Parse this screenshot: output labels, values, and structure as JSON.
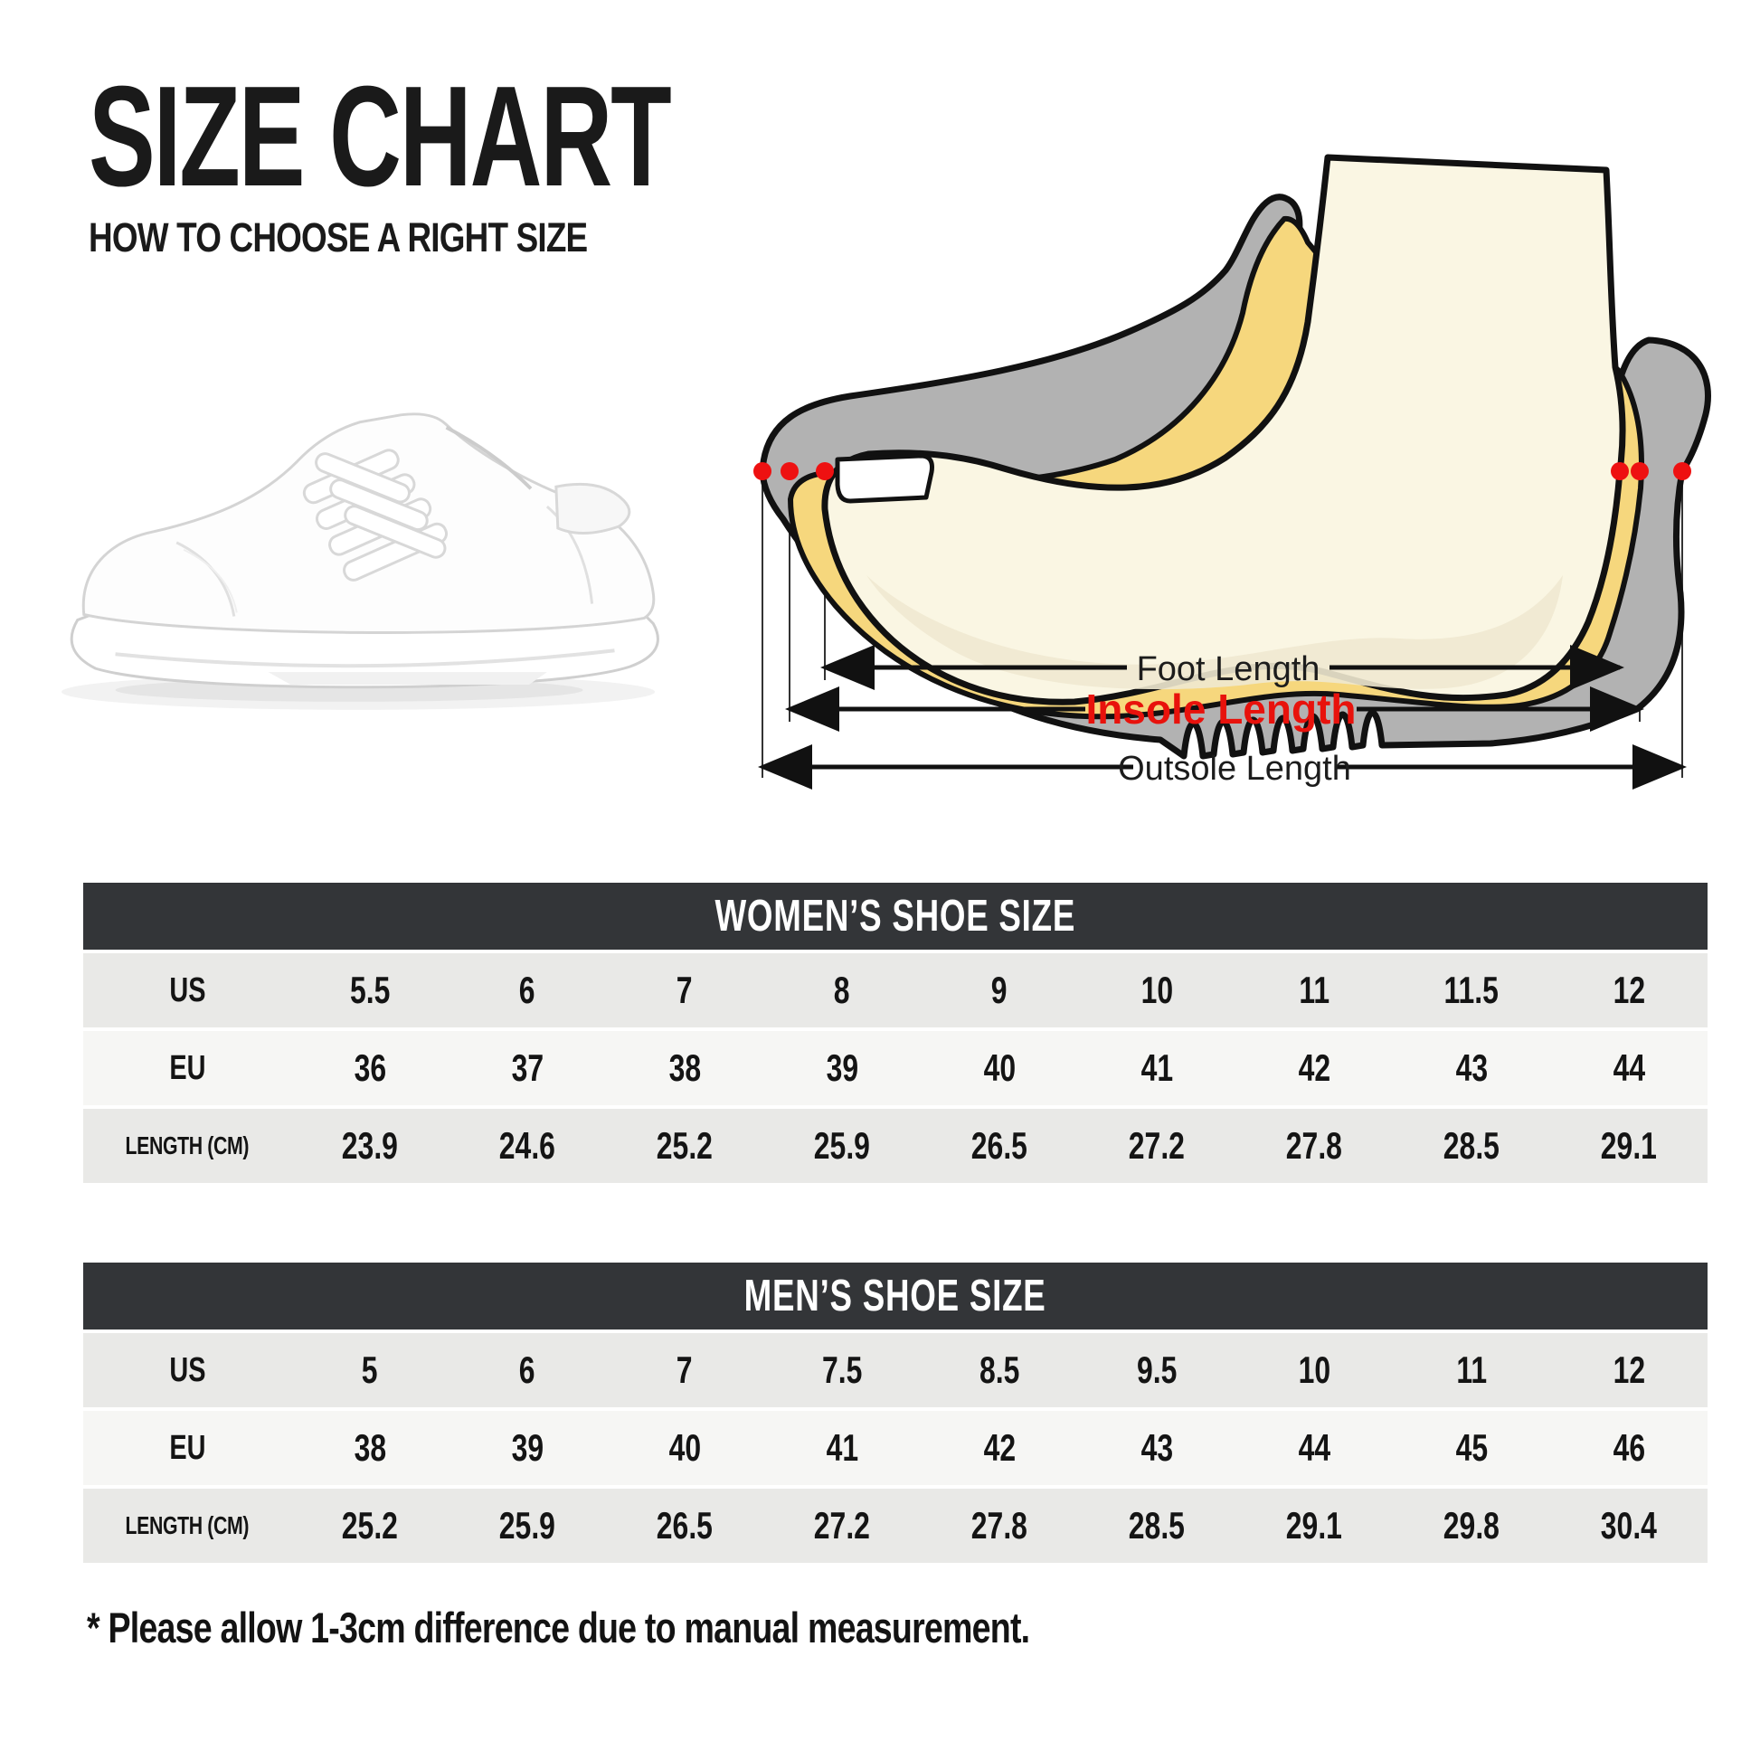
{
  "header": {
    "title": "SIZE CHART",
    "subtitle": "HOW TO CHOOSE A RIGHT SIZE"
  },
  "diagram": {
    "foot_length_label": "Foot Length",
    "insole_length_label": "Insole Length",
    "outsole_length_label": "Outsole Length",
    "colors": {
      "insole_label_red": "#e8120c",
      "marker_dot_red": "#ee1111",
      "shoe_gray": "#b2b2b2",
      "insole_yellow": "#f6d77d",
      "foot_cream": "#faf6e3",
      "foot_shade": "#efe9d0",
      "outline_black": "#111111"
    }
  },
  "tables": [
    {
      "title": "WOMEN’S SHOE SIZE",
      "rows": [
        {
          "label": "US",
          "values": [
            "5.5",
            "6",
            "7",
            "8",
            "9",
            "10",
            "11",
            "11.5",
            "12"
          ]
        },
        {
          "label": "EU",
          "values": [
            "36",
            "37",
            "38",
            "39",
            "40",
            "41",
            "42",
            "43",
            "44"
          ]
        },
        {
          "label": "LENGTH (CM)",
          "values": [
            "23.9",
            "24.6",
            "25.2",
            "25.9",
            "26.5",
            "27.2",
            "27.8",
            "28.5",
            "29.1"
          ]
        }
      ]
    },
    {
      "title": "MEN’S SHOE SIZE",
      "rows": [
        {
          "label": "US",
          "values": [
            "5",
            "6",
            "7",
            "7.5",
            "8.5",
            "9.5",
            "10",
            "11",
            "12"
          ]
        },
        {
          "label": "EU",
          "values": [
            "38",
            "39",
            "40",
            "41",
            "42",
            "43",
            "44",
            "45",
            "46"
          ]
        },
        {
          "label": "LENGTH (CM)",
          "values": [
            "25.2",
            "25.9",
            "26.5",
            "27.2",
            "27.8",
            "28.5",
            "29.1",
            "29.8",
            "30.4"
          ]
        }
      ]
    }
  ],
  "footnote": "* Please allow 1-3cm difference due to manual measurement."
}
